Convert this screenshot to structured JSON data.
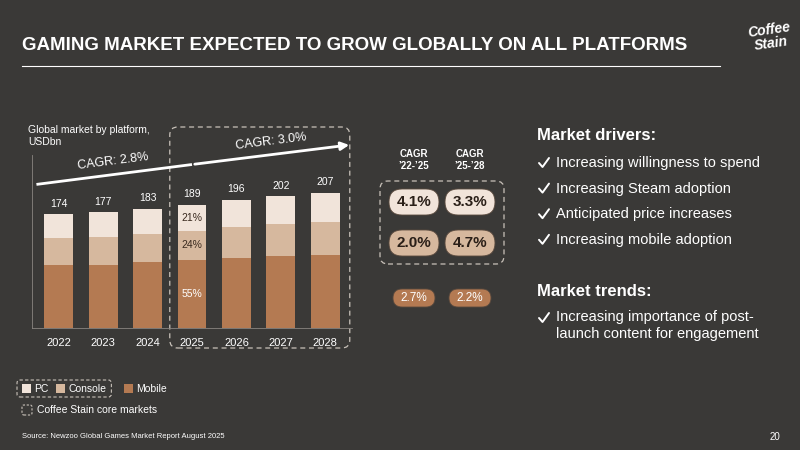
{
  "header": {
    "title": "GAMING MARKET EXPECTED TO GROW GLOBALLY ON ALL PLATFORMS",
    "logo": "Coffee Stain"
  },
  "chart_data": {
    "type": "bar",
    "stacked": true,
    "title": "Global market by platform, USDbn",
    "categories": [
      "2022",
      "2023",
      "2024",
      "2025",
      "2026",
      "2027",
      "2028"
    ],
    "series": [
      {
        "name": "Mobile",
        "color": "#b47a52",
        "values": [
          96.1,
          96.7,
          100.4,
          104,
          107.6,
          110.0,
          111.3
        ],
        "share_label": {
          "category": "2025",
          "label": "55%"
        }
      },
      {
        "name": "Console",
        "color": "#d6b89e",
        "values": [
          42.4,
          43.3,
          44.1,
          45,
          47.1,
          49.3,
          51.6
        ],
        "share_label": {
          "category": "2025",
          "label": "24%"
        }
      },
      {
        "name": "PC",
        "color": "#f1e4da",
        "values": [
          35.5,
          37.0,
          38.5,
          40,
          41.3,
          42.7,
          44.1
        ],
        "share_label": {
          "category": "2025",
          "label": "21%"
        }
      }
    ],
    "totals": [
      174,
      177,
      183,
      189,
      196,
      202,
      207
    ],
    "ylim": [
      0,
      265
    ],
    "yticks": [],
    "tick_labels": "x",
    "trend_arrow": [
      {
        "label": "CAGR: 2.8%",
        "from": "2022",
        "to": "2025"
      },
      {
        "label": "CAGR: 3.0%",
        "from": "2025",
        "to": "2028"
      }
    ],
    "core_markets": {
      "label": "Coffee Stain core markets",
      "series": [
        "PC",
        "Console"
      ],
      "categories": [
        "2025",
        "2026",
        "2027",
        "2028"
      ]
    }
  },
  "cagr_table": {
    "columns": [
      [
        "CAGR",
        "’22-’25"
      ],
      [
        "CAGR",
        "’25-’28"
      ]
    ],
    "rows": [
      {
        "series": "PC",
        "values": [
          "4.1%",
          "3.3%"
        ]
      },
      {
        "series": "Console",
        "values": [
          "2.0%",
          "4.7%"
        ]
      },
      {
        "series": "Mobile",
        "values": [
          "2.7%",
          "2.2%"
        ]
      }
    ]
  },
  "market_drivers": {
    "heading": "Market drivers:",
    "items": [
      "Increasing willingness to spend",
      "Increasing Steam adoption",
      "Anticipated price increases",
      "Increasing mobile adoption"
    ]
  },
  "market_trends": {
    "heading": "Market trends:",
    "items": [
      "Increasing importance of post-launch content for engagement"
    ]
  },
  "footer": {
    "source": "Source: Newzoo Global Games Market Report August 2025",
    "page": "20"
  }
}
